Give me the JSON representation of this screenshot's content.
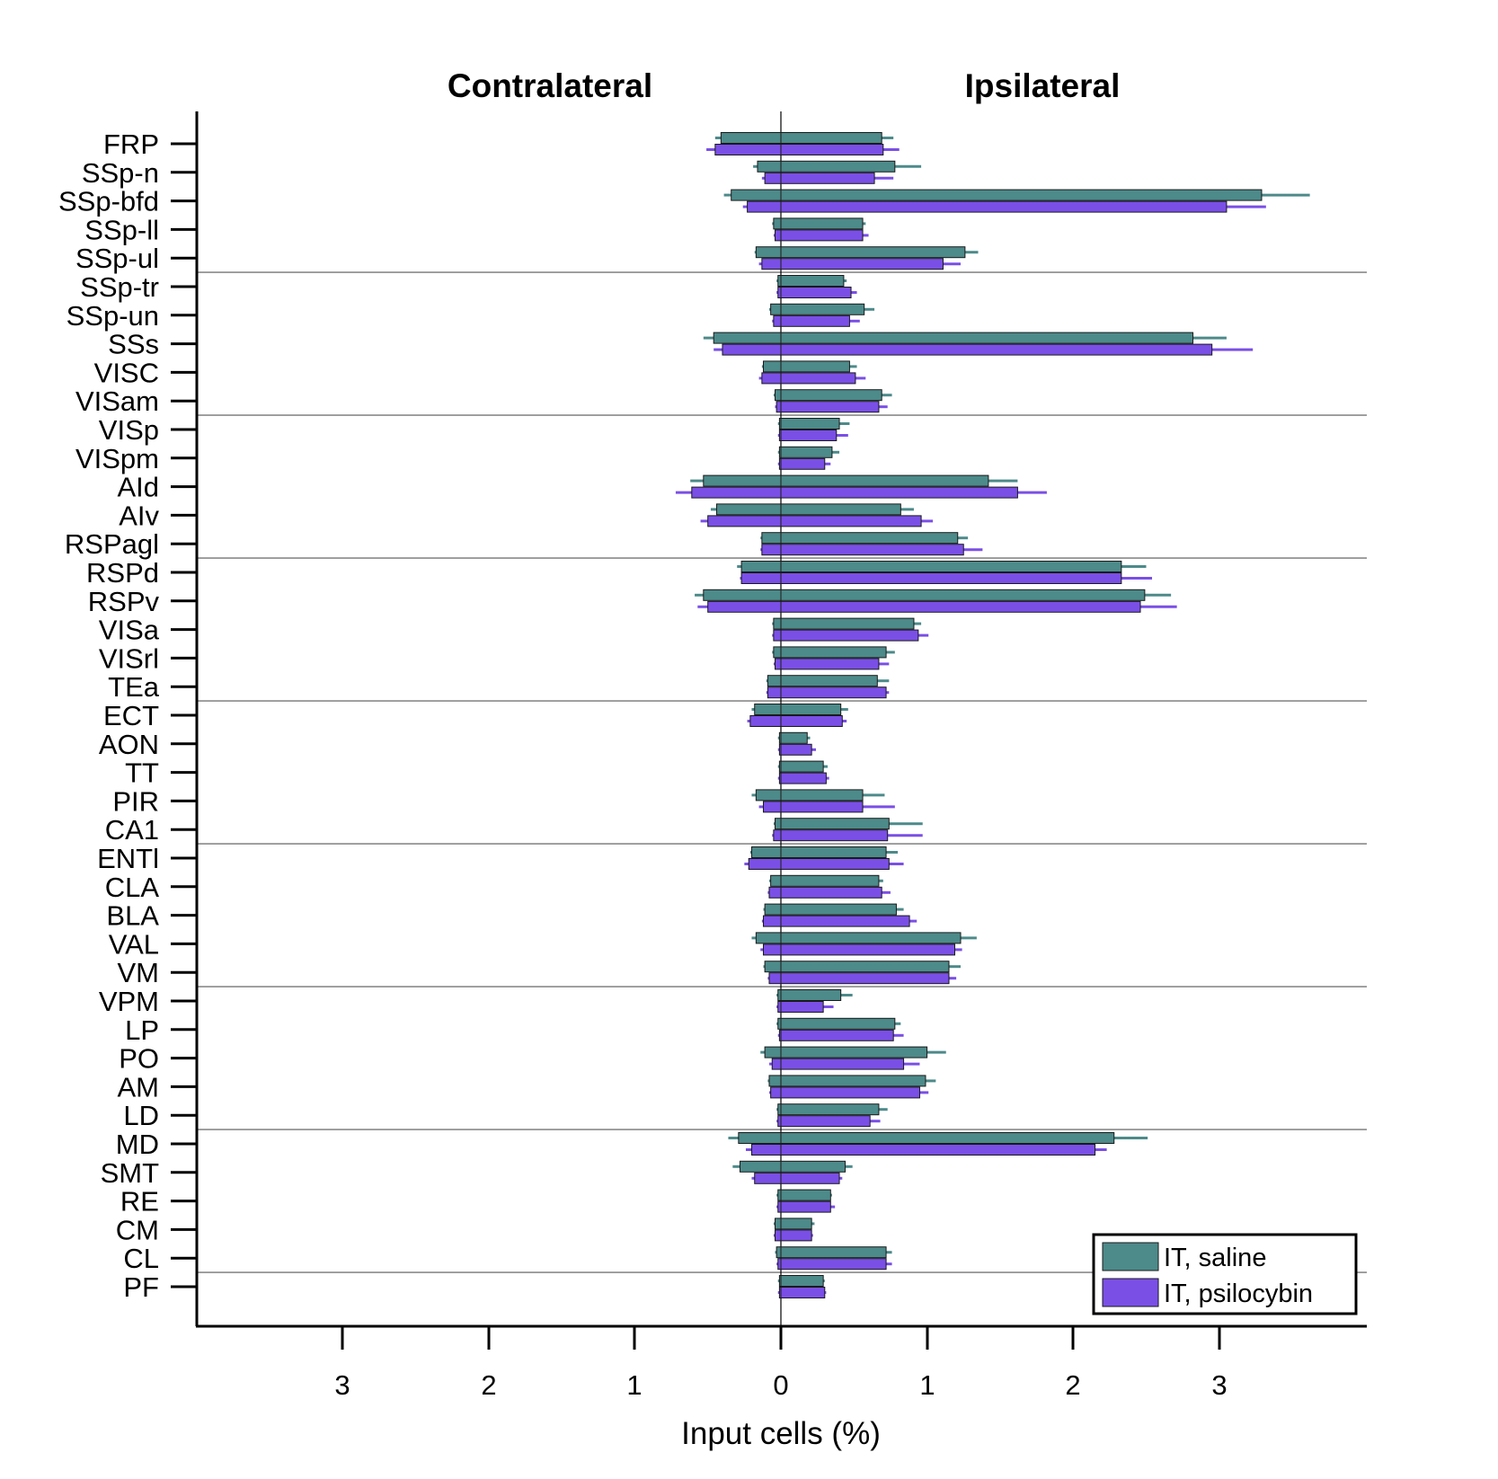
{
  "chart_data": {
    "type": "bar",
    "orientation": "horizontal",
    "titles": {
      "left": "Contralateral",
      "right": "Ipsilateral"
    },
    "xlabel": "Input cells (%)",
    "xticks": {
      "left": [
        "3",
        "2",
        "1"
      ],
      "zero": "0",
      "right": [
        "1",
        "2",
        "3"
      ]
    },
    "xlim_contra": [
      0,
      4.0
    ],
    "xlim_ipsi": [
      0,
      4.0
    ],
    "categories": [
      "FRP",
      "SSp-n",
      "SSp-bfd",
      "SSp-ll",
      "SSp-ul",
      "SSp-tr",
      "SSp-un",
      "SSs",
      "VISC",
      "VISam",
      "VISp",
      "VISpm",
      "AId",
      "AIv",
      "RSPagl",
      "RSPd",
      "RSPv",
      "VISa",
      "VISrl",
      "TEa",
      "ECT",
      "AON",
      "TT",
      "PIR",
      "CA1",
      "ENTl",
      "CLA",
      "BLA",
      "VAL",
      "VM",
      "VPM",
      "LP",
      "PO",
      "AM",
      "LD",
      "MD",
      "SMT",
      "RE",
      "CM",
      "CL",
      "PF"
    ],
    "group_separators_after": [
      "SSp-ul",
      "VISam",
      "RSPagl",
      "TEa",
      "CA1",
      "VM",
      "LD",
      "CL"
    ],
    "series": [
      {
        "name": "IT, saline",
        "color": "#4d8a8a",
        "ipsi": [
          0.69,
          0.78,
          3.29,
          0.56,
          1.26,
          0.43,
          0.57,
          2.82,
          0.47,
          0.69,
          0.4,
          0.35,
          1.42,
          0.82,
          1.21,
          2.33,
          2.49,
          0.91,
          0.72,
          0.66,
          0.41,
          0.18,
          0.29,
          0.56,
          0.74,
          0.72,
          0.67,
          0.79,
          1.23,
          1.15,
          0.41,
          0.78,
          1.0,
          0.99,
          0.67,
          2.28,
          0.44,
          0.34,
          0.21,
          0.72,
          0.29
        ],
        "ipsi_err": [
          0.08,
          0.18,
          0.33,
          0.02,
          0.09,
          0.02,
          0.07,
          0.23,
          0.05,
          0.07,
          0.07,
          0.05,
          0.2,
          0.09,
          0.07,
          0.17,
          0.18,
          0.05,
          0.06,
          0.08,
          0.05,
          0.02,
          0.03,
          0.15,
          0.23,
          0.08,
          0.03,
          0.05,
          0.11,
          0.08,
          0.08,
          0.04,
          0.13,
          0.07,
          0.06,
          0.23,
          0.05,
          0.01,
          0.02,
          0.04,
          0.01
        ],
        "contra": [
          0.41,
          0.16,
          0.34,
          0.05,
          0.17,
          0.02,
          0.07,
          0.46,
          0.12,
          0.04,
          0.01,
          0.01,
          0.53,
          0.44,
          0.13,
          0.27,
          0.53,
          0.05,
          0.05,
          0.09,
          0.18,
          0.01,
          0.01,
          0.17,
          0.04,
          0.2,
          0.07,
          0.11,
          0.17,
          0.11,
          0.02,
          0.02,
          0.11,
          0.08,
          0.02,
          0.29,
          0.28,
          0.02,
          0.04,
          0.03,
          0.01
        ],
        "contra_err": [
          0.04,
          0.03,
          0.05,
          0.01,
          0.01,
          0.01,
          0.01,
          0.07,
          0.01,
          0.01,
          0.01,
          0.01,
          0.09,
          0.04,
          0.01,
          0.03,
          0.06,
          0.01,
          0.01,
          0.01,
          0.02,
          0.01,
          0.01,
          0.03,
          0.01,
          0.01,
          0.01,
          0.01,
          0.03,
          0.01,
          0.01,
          0.01,
          0.03,
          0.01,
          0.01,
          0.07,
          0.05,
          0.01,
          0.01,
          0.01,
          0.01
        ]
      },
      {
        "name": "IT, psilocybin",
        "color": "#7a4fe6",
        "ipsi": [
          0.7,
          0.64,
          3.05,
          0.56,
          1.11,
          0.48,
          0.47,
          2.95,
          0.51,
          0.67,
          0.38,
          0.3,
          1.62,
          0.96,
          1.25,
          2.33,
          2.46,
          0.94,
          0.67,
          0.72,
          0.42,
          0.21,
          0.31,
          0.56,
          0.73,
          0.74,
          0.69,
          0.88,
          1.19,
          1.15,
          0.29,
          0.77,
          0.84,
          0.95,
          0.61,
          2.15,
          0.4,
          0.34,
          0.21,
          0.72,
          0.3
        ],
        "ipsi_err": [
          0.11,
          0.13,
          0.27,
          0.04,
          0.12,
          0.04,
          0.07,
          0.28,
          0.07,
          0.06,
          0.08,
          0.04,
          0.2,
          0.08,
          0.13,
          0.21,
          0.25,
          0.07,
          0.07,
          0.02,
          0.03,
          0.03,
          0.02,
          0.22,
          0.24,
          0.1,
          0.06,
          0.05,
          0.05,
          0.05,
          0.07,
          0.07,
          0.11,
          0.06,
          0.07,
          0.08,
          0.02,
          0.03,
          0.01,
          0.04,
          0.01
        ],
        "contra": [
          0.45,
          0.11,
          0.23,
          0.04,
          0.13,
          0.02,
          0.05,
          0.4,
          0.13,
          0.03,
          0.01,
          0.01,
          0.61,
          0.5,
          0.13,
          0.27,
          0.5,
          0.05,
          0.04,
          0.09,
          0.21,
          0.01,
          0.01,
          0.12,
          0.05,
          0.22,
          0.08,
          0.12,
          0.12,
          0.08,
          0.02,
          0.01,
          0.06,
          0.07,
          0.02,
          0.2,
          0.18,
          0.02,
          0.04,
          0.02,
          0.01
        ],
        "contra_err": [
          0.06,
          0.02,
          0.03,
          0.01,
          0.02,
          0.01,
          0.01,
          0.06,
          0.02,
          0.01,
          0.01,
          0.01,
          0.11,
          0.05,
          0.01,
          0.01,
          0.07,
          0.01,
          0.01,
          0.01,
          0.02,
          0.01,
          0.01,
          0.03,
          0.01,
          0.03,
          0.01,
          0.01,
          0.02,
          0.01,
          0.01,
          0.01,
          0.02,
          0.01,
          0.01,
          0.04,
          0.02,
          0.01,
          0.01,
          0.01,
          0.01
        ]
      }
    ],
    "legend_position": "bottom-right",
    "grid": false
  }
}
